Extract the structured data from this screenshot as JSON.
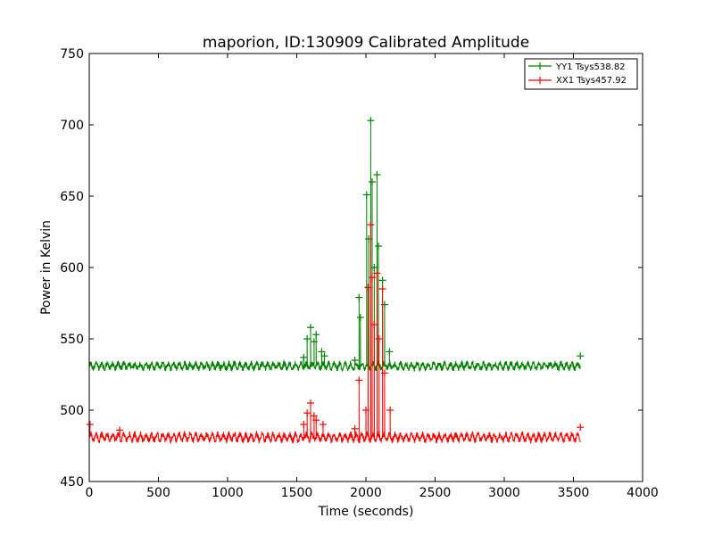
{
  "chart_data": {
    "type": "line",
    "title": "maporion, ID:130909 Calibrated Amplitude",
    "xlabel": "Time (seconds)",
    "ylabel": "Power in Kelvin",
    "xlim": [
      0,
      4000
    ],
    "ylim": [
      450,
      750
    ],
    "xticks": [
      0,
      500,
      1000,
      1500,
      2000,
      2500,
      3000,
      3500,
      4000
    ],
    "yticks": [
      450,
      500,
      550,
      600,
      650,
      700,
      750
    ],
    "grid": false,
    "legend_position": "top-right",
    "x_end": 3550,
    "series": [
      {
        "name": "YY1 Tsys538.82",
        "color": "#008000",
        "baseline": 531,
        "noise": 2,
        "ripple_amplitude": 1.8,
        "ripple_period": 40,
        "spikes": [
          {
            "x": 1550,
            "y": 537
          },
          {
            "x": 1575,
            "y": 550
          },
          {
            "x": 1600,
            "y": 558
          },
          {
            "x": 1625,
            "y": 548
          },
          {
            "x": 1640,
            "y": 553
          },
          {
            "x": 1680,
            "y": 541
          },
          {
            "x": 1700,
            "y": 538
          },
          {
            "x": 1920,
            "y": 535
          },
          {
            "x": 1950,
            "y": 579
          },
          {
            "x": 1960,
            "y": 565
          },
          {
            "x": 2005,
            "y": 651
          },
          {
            "x": 2020,
            "y": 620
          },
          {
            "x": 2035,
            "y": 703
          },
          {
            "x": 2045,
            "y": 660
          },
          {
            "x": 2060,
            "y": 600
          },
          {
            "x": 2080,
            "y": 665
          },
          {
            "x": 2090,
            "y": 615
          },
          {
            "x": 2120,
            "y": 591
          },
          {
            "x": 2135,
            "y": 574
          },
          {
            "x": 2170,
            "y": 541
          },
          {
            "x": 3550,
            "y": 538
          }
        ]
      },
      {
        "name": "XX1 Tsys457.92",
        "color": "#ff0000",
        "baseline": 481,
        "noise": 2,
        "ripple_amplitude": 2.2,
        "ripple_period": 40,
        "spikes": [
          {
            "x": 5,
            "y": 490
          },
          {
            "x": 220,
            "y": 486
          },
          {
            "x": 1550,
            "y": 490
          },
          {
            "x": 1575,
            "y": 498
          },
          {
            "x": 1600,
            "y": 505
          },
          {
            "x": 1625,
            "y": 496
          },
          {
            "x": 1640,
            "y": 493
          },
          {
            "x": 1690,
            "y": 490
          },
          {
            "x": 1920,
            "y": 487
          },
          {
            "x": 1950,
            "y": 521
          },
          {
            "x": 2000,
            "y": 500
          },
          {
            "x": 2015,
            "y": 586
          },
          {
            "x": 2035,
            "y": 630
          },
          {
            "x": 2045,
            "y": 593
          },
          {
            "x": 2060,
            "y": 560
          },
          {
            "x": 2080,
            "y": 596
          },
          {
            "x": 2095,
            "y": 550
          },
          {
            "x": 2120,
            "y": 585
          },
          {
            "x": 2135,
            "y": 526
          },
          {
            "x": 2175,
            "y": 500
          },
          {
            "x": 3550,
            "y": 488
          }
        ]
      }
    ]
  }
}
